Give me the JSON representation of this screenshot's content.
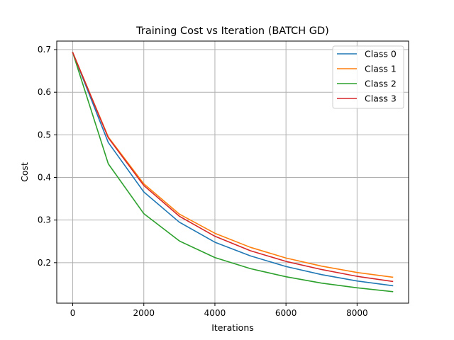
{
  "chart_data": {
    "type": "line",
    "title": "Training Cost vs Iteration (BATCH GD)",
    "xlabel": "Iterations",
    "ylabel": "Cost",
    "xlim": [
      -450,
      9450
    ],
    "ylim": [
      0.105,
      0.72
    ],
    "xticks": [
      0,
      2000,
      4000,
      6000,
      8000
    ],
    "yticks": [
      0.2,
      0.3,
      0.4,
      0.5,
      0.6,
      0.7
    ],
    "xtick_labels": [
      "0",
      "2000",
      "4000",
      "6000",
      "8000"
    ],
    "ytick_labels": [
      "0.2",
      "0.3",
      "0.4",
      "0.5",
      "0.6",
      "0.7"
    ],
    "grid": true,
    "legend_position": "top-right",
    "x": [
      0,
      1000,
      2000,
      3000,
      4000,
      5000,
      6000,
      7000,
      8000,
      9000
    ],
    "series": [
      {
        "name": "Class 0",
        "color": "#1f77b4",
        "values": [
          0.693,
          0.482,
          0.366,
          0.295,
          0.248,
          0.216,
          0.191,
          0.172,
          0.157,
          0.146
        ]
      },
      {
        "name": "Class 1",
        "color": "#ff7f0e",
        "values": [
          0.693,
          0.495,
          0.385,
          0.314,
          0.269,
          0.236,
          0.211,
          0.192,
          0.177,
          0.166
        ]
      },
      {
        "name": "Class 2",
        "color": "#2ca02c",
        "values": [
          0.693,
          0.432,
          0.315,
          0.251,
          0.212,
          0.186,
          0.167,
          0.152,
          0.141,
          0.132
        ]
      },
      {
        "name": "Class 3",
        "color": "#d62728",
        "values": [
          0.693,
          0.493,
          0.381,
          0.309,
          0.262,
          0.228,
          0.203,
          0.184,
          0.168,
          0.156
        ]
      }
    ]
  }
}
